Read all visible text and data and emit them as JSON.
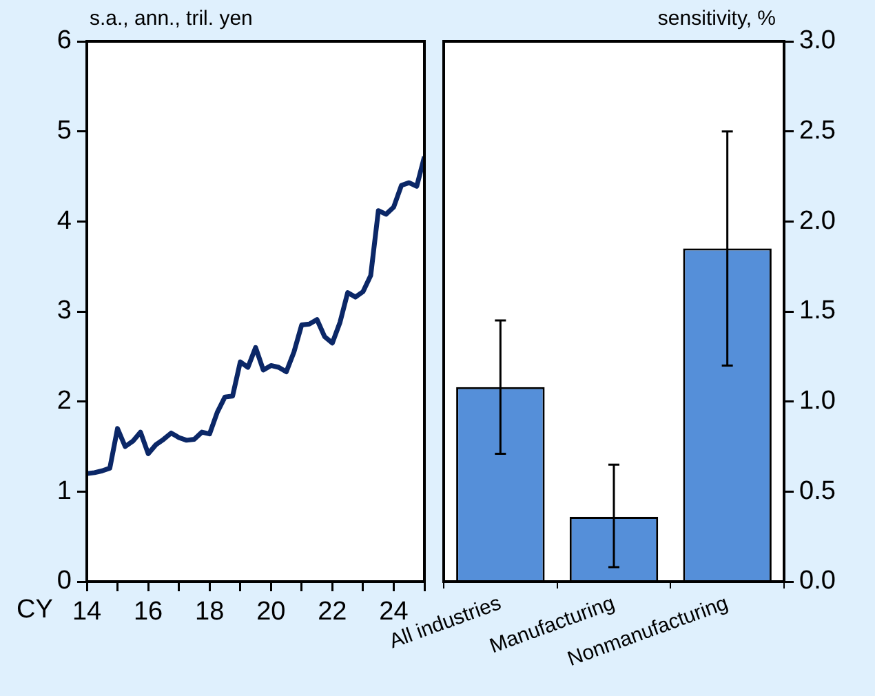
{
  "chart_data": [
    {
      "type": "line",
      "ylabel": "s.a., ann., tril. yen",
      "xlabel": "CY",
      "color": "#0b2767",
      "marker": "none",
      "x": [
        14,
        14.25,
        14.5,
        14.75,
        15,
        15.25,
        15.5,
        15.75,
        16,
        16.25,
        16.5,
        16.75,
        17,
        17.25,
        17.5,
        17.75,
        18,
        18.25,
        18.5,
        18.75,
        19,
        19.25,
        19.5,
        19.75,
        20,
        20.25,
        20.5,
        20.75,
        21,
        21.25,
        21.5,
        21.75,
        22,
        22.25,
        22.5,
        22.75,
        23,
        23.25,
        23.5,
        23.75,
        24,
        24.25,
        24.5,
        24.75,
        25
      ],
      "values": [
        1.2,
        1.21,
        1.23,
        1.26,
        1.7,
        1.5,
        1.56,
        1.66,
        1.42,
        1.52,
        1.58,
        1.65,
        1.6,
        1.57,
        1.58,
        1.66,
        1.64,
        1.88,
        2.05,
        2.06,
        2.44,
        2.38,
        2.6,
        2.35,
        2.4,
        2.38,
        2.33,
        2.55,
        2.85,
        2.86,
        2.91,
        2.72,
        2.65,
        2.88,
        3.21,
        3.16,
        3.22,
        3.4,
        4.12,
        4.08,
        4.16,
        4.4,
        4.43,
        4.39,
        4.72
      ],
      "xlim": [
        14,
        25
      ],
      "xticks": [
        14,
        {
          "value": 15,
          "label": null
        },
        16,
        {
          "value": 17,
          "label": null
        },
        18,
        {
          "value": 19,
          "label": null
        },
        20,
        {
          "value": 21,
          "label": null
        },
        22,
        {
          "value": 23,
          "label": null
        },
        24,
        {
          "value": 25,
          "label": null
        }
      ],
      "ylim": [
        0,
        6
      ],
      "yticks": [
        0,
        1,
        2,
        3,
        4,
        5,
        6
      ]
    },
    {
      "type": "bar",
      "y2label": "sensitivity, %",
      "categories": [
        "All industries",
        "Manufacturing",
        "Nonmanufacturing"
      ],
      "series": [
        {
          "axis": "y2",
          "color": "#558fd9",
          "values": [
            1.08,
            0.36,
            1.85
          ],
          "errors": [
            [
              0.71,
              1.45
            ],
            [
              0.08,
              0.65
            ],
            [
              1.2,
              2.5
            ]
          ]
        }
      ],
      "y2lim": [
        0,
        3
      ],
      "y2ticks": [
        {
          "value": 0,
          "label": "0.0"
        },
        {
          "value": 0.5,
          "label": "0.5"
        },
        {
          "value": 1,
          "label": "1.0"
        },
        {
          "value": 1.5,
          "label": "1.5"
        },
        {
          "value": 2,
          "label": "2.0"
        },
        {
          "value": 2.5,
          "label": "2.5"
        },
        {
          "value": 3,
          "label": "3.0"
        }
      ]
    }
  ]
}
